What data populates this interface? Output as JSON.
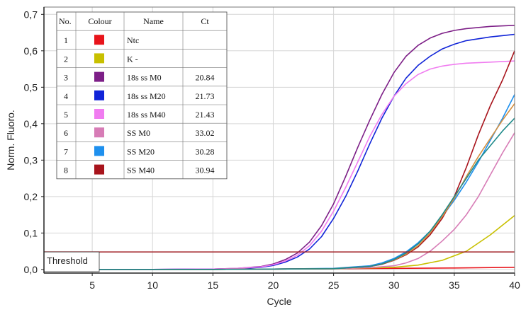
{
  "chart_data": {
    "type": "line",
    "xlabel": "Cycle",
    "ylabel": "Norm. Fluoro.",
    "xlim": [
      1,
      40
    ],
    "ylim": [
      -0.01,
      0.72
    ],
    "xticks": [
      5,
      10,
      15,
      20,
      25,
      30,
      35,
      40
    ],
    "yticks": [
      0.0,
      0.1,
      0.2,
      0.3,
      0.4,
      0.5,
      0.6,
      0.7
    ],
    "ytick_labels": [
      "0,0",
      "0,1",
      "0,2",
      "0,3",
      "0,4",
      "0,5",
      "0,6",
      "0,7"
    ],
    "grid": true,
    "threshold": {
      "label": "Threshold",
      "value": 0.048,
      "color": "#a3262b"
    },
    "legend": {
      "placement": "top-left",
      "headers": [
        "No.",
        "Colour",
        "Name",
        "Ct"
      ],
      "rows": [
        {
          "no": "1",
          "color": "#e8141b",
          "name": "Ntc",
          "ct": ""
        },
        {
          "no": "2",
          "color": "#c8c000",
          "name": "K -",
          "ct": ""
        },
        {
          "no": "3",
          "color": "#7d1f87",
          "name": "18s ss M0",
          "ct": "20.84"
        },
        {
          "no": "4",
          "color": "#1024d8",
          "name": "18s ss M20",
          "ct": "21.73"
        },
        {
          "no": "5",
          "color": "#f07cf0",
          "name": "18s ss M40",
          "ct": "21.43"
        },
        {
          "no": "6",
          "color": "#d77cb6",
          "name": "SS M0",
          "ct": "33.02"
        },
        {
          "no": "7",
          "color": "#1e90ee",
          "name": "SS M20",
          "ct": "30.28"
        },
        {
          "no": "8",
          "color": "#a8141c",
          "name": "SS M40",
          "ct": "30.94"
        }
      ]
    },
    "series": [
      {
        "key": "s1",
        "color": "#e8141b",
        "x": [
          1,
          5,
          10,
          15,
          20,
          25,
          30,
          35,
          40
        ],
        "y": [
          0.0,
          0.0,
          0.0,
          0.0,
          0.001,
          0.002,
          0.003,
          0.004,
          0.006
        ]
      },
      {
        "key": "s2",
        "color": "#c8c000",
        "x": [
          1,
          5,
          10,
          15,
          20,
          25,
          30,
          32,
          34,
          36,
          38,
          40
        ],
        "y": [
          0.0,
          0.0,
          0.0,
          0.0,
          0.001,
          0.002,
          0.006,
          0.012,
          0.025,
          0.05,
          0.095,
          0.148
        ]
      },
      {
        "key": "s3",
        "color": "#7d1f87",
        "x": [
          1,
          5,
          10,
          15,
          17,
          19,
          20,
          21,
          22,
          23,
          24,
          25,
          26,
          27,
          28,
          29,
          30,
          31,
          32,
          33,
          34,
          35,
          36,
          38,
          40
        ],
        "y": [
          0.0,
          0.0,
          0.0,
          0.001,
          0.003,
          0.008,
          0.015,
          0.027,
          0.045,
          0.075,
          0.12,
          0.18,
          0.255,
          0.335,
          0.41,
          0.48,
          0.54,
          0.585,
          0.615,
          0.635,
          0.648,
          0.656,
          0.661,
          0.667,
          0.67
        ]
      },
      {
        "key": "s4",
        "color": "#1024d8",
        "x": [
          1,
          5,
          10,
          15,
          17,
          19,
          20,
          21,
          22,
          23,
          24,
          25,
          26,
          27,
          28,
          29,
          30,
          31,
          32,
          33,
          34,
          35,
          36,
          38,
          40
        ],
        "y": [
          0.0,
          0.0,
          0.0,
          0.001,
          0.002,
          0.006,
          0.011,
          0.02,
          0.034,
          0.056,
          0.09,
          0.14,
          0.2,
          0.27,
          0.345,
          0.415,
          0.475,
          0.525,
          0.56,
          0.585,
          0.605,
          0.618,
          0.628,
          0.638,
          0.645
        ]
      },
      {
        "key": "s5",
        "color": "#f07cf0",
        "x": [
          1,
          5,
          10,
          15,
          17,
          19,
          20,
          21,
          22,
          23,
          24,
          25,
          26,
          27,
          28,
          29,
          30,
          31,
          32,
          33,
          34,
          35,
          36,
          38,
          40
        ],
        "y": [
          0.0,
          0.0,
          0.0,
          0.001,
          0.003,
          0.007,
          0.013,
          0.023,
          0.039,
          0.065,
          0.105,
          0.16,
          0.225,
          0.295,
          0.365,
          0.425,
          0.475,
          0.51,
          0.535,
          0.55,
          0.558,
          0.563,
          0.566,
          0.569,
          0.572
        ]
      },
      {
        "key": "s6",
        "color": "#d77cb6",
        "x": [
          1,
          5,
          10,
          15,
          20,
          25,
          28,
          30,
          31,
          32,
          33,
          34,
          35,
          36,
          37,
          38,
          39,
          40
        ],
        "y": [
          0.0,
          0.0,
          0.0,
          0.0,
          0.001,
          0.002,
          0.005,
          0.01,
          0.018,
          0.03,
          0.05,
          0.078,
          0.11,
          0.15,
          0.2,
          0.26,
          0.32,
          0.375
        ]
      },
      {
        "key": "s7",
        "color": "#1e90ee",
        "x": [
          1,
          5,
          10,
          15,
          20,
          25,
          28,
          29,
          30,
          31,
          32,
          33,
          34,
          35,
          36,
          37,
          38,
          39,
          40
        ],
        "y": [
          0.0,
          0.0,
          0.0,
          0.0,
          0.001,
          0.003,
          0.01,
          0.018,
          0.03,
          0.048,
          0.073,
          0.105,
          0.145,
          0.19,
          0.24,
          0.295,
          0.355,
          0.415,
          0.48
        ]
      },
      {
        "key": "s8",
        "color": "#a8141c",
        "x": [
          1,
          5,
          10,
          15,
          20,
          25,
          28,
          29,
          30,
          31,
          32,
          33,
          34,
          35,
          36,
          37,
          38,
          39,
          40
        ],
        "y": [
          0.0,
          0.0,
          0.0,
          0.0,
          0.001,
          0.002,
          0.008,
          0.014,
          0.025,
          0.04,
          0.062,
          0.095,
          0.14,
          0.2,
          0.28,
          0.37,
          0.45,
          0.52,
          0.6
        ]
      },
      {
        "key": "s9",
        "color": "#d49040",
        "x": [
          1,
          5,
          10,
          15,
          20,
          25,
          28,
          29,
          30,
          31,
          32,
          33,
          34,
          35,
          36,
          37,
          38,
          39,
          40
        ],
        "y": [
          0.0,
          0.0,
          0.0,
          0.0,
          0.001,
          0.002,
          0.008,
          0.015,
          0.026,
          0.042,
          0.065,
          0.1,
          0.145,
          0.195,
          0.255,
          0.31,
          0.36,
          0.41,
          0.455
        ]
      },
      {
        "key": "s10",
        "color": "#1f8a8a",
        "x": [
          1,
          5,
          10,
          15,
          20,
          25,
          28,
          29,
          30,
          31,
          32,
          33,
          34,
          35,
          36,
          37,
          38,
          39,
          40
        ],
        "y": [
          0.0,
          0.0,
          0.0,
          0.0,
          0.001,
          0.002,
          0.008,
          0.015,
          0.027,
          0.045,
          0.07,
          0.105,
          0.15,
          0.2,
          0.25,
          0.3,
          0.34,
          0.38,
          0.415
        ]
      }
    ]
  }
}
